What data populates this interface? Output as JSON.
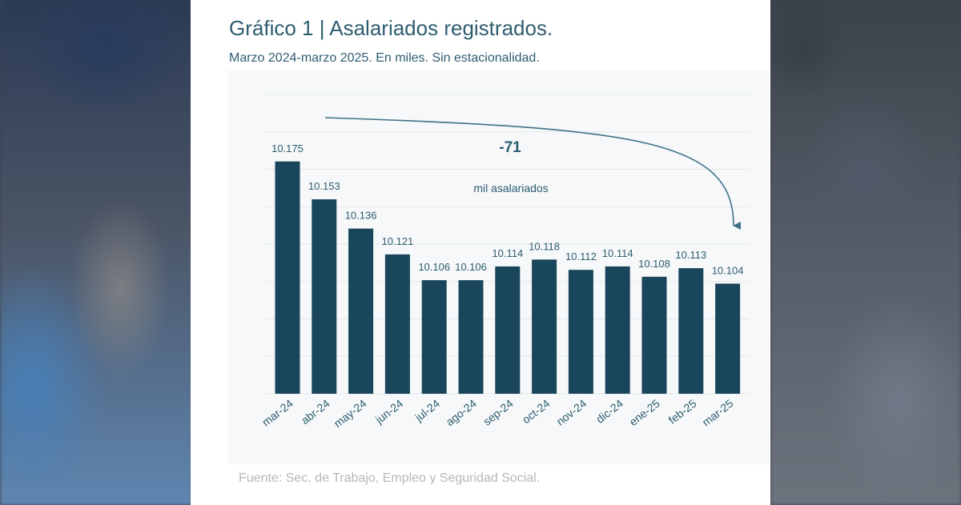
{
  "header": {
    "title": "Gráfico 1 | Asalariados registrados.",
    "subtitle": "Marzo 2024-marzo 2025. En miles. Sin estacionalidad."
  },
  "footer": {
    "source": "Fuente: Sec. de Trabajo, Empleo y Seguridad Social."
  },
  "annotation": {
    "change": "-71",
    "note": "mil asalariados"
  },
  "colors": {
    "bar": "#19465a",
    "text": "#2e5d70",
    "grid": "#e3e7ea",
    "arrow": "#3f7287"
  },
  "chart_data": {
    "type": "bar",
    "title": "Gráfico 1 | Asalariados registrados.",
    "subtitle": "Marzo 2024-marzo 2025. En miles. Sin estacionalidad.",
    "categories": [
      "mar-24",
      "abr-24",
      "may-24",
      "jun-24",
      "jul-24",
      "ago-24",
      "sep-24",
      "oct-24",
      "nov-24",
      "dic-24",
      "ene-25",
      "feb-25",
      "mar-25"
    ],
    "values": [
      10175,
      10153,
      10136,
      10121,
      10106,
      10106,
      10114,
      10118,
      10112,
      10114,
      10108,
      10113,
      10104
    ],
    "value_labels": [
      "10.175",
      "10.153",
      "10.136",
      "10.121",
      "10.106",
      "10.106",
      "10.114",
      "10.118",
      "10.112",
      "10.114",
      "10.108",
      "10.113",
      "10.104"
    ],
    "xlabel": "",
    "ylabel": "",
    "ylim": [
      10040,
      10200
    ],
    "grid": true,
    "legend": "none"
  }
}
